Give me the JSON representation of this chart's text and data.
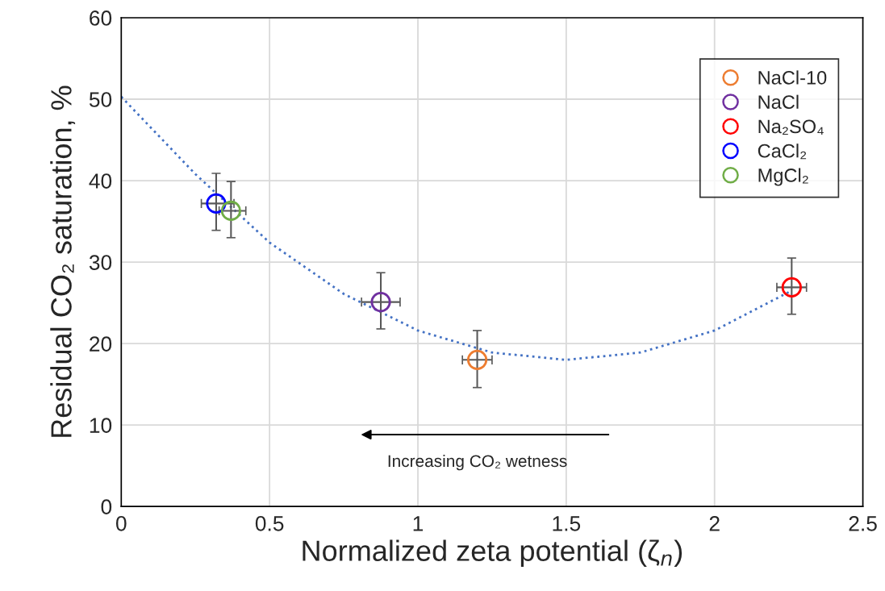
{
  "chart_data": {
    "type": "scatter",
    "xlabel": "Normalized zeta potential (ζ$_{n}$)",
    "ylabel": "Residual CO₂ saturation, %",
    "xlim": [
      0,
      2.5
    ],
    "xticks": [
      0,
      0.5,
      1,
      1.5,
      2,
      2.5
    ],
    "ylim": [
      0,
      60
    ],
    "yticks": [
      0,
      10,
      20,
      30,
      40,
      50,
      60
    ],
    "grid": true,
    "legend": "top right",
    "marker": "circle",
    "annotations": [
      "Increasing CO₂ wetness"
    ],
    "series": [
      {
        "type": "line",
        "color": "#4472c4",
        "line_style": "dotted",
        "marker": "none",
        "x": [
          0,
          0.25,
          0.5,
          0.75,
          1,
          1.25,
          1.5,
          1.75,
          2,
          2.26
        ],
        "values": [
          50.3,
          40.8,
          32.4,
          26.1,
          21.6,
          18.9,
          18.0,
          18.9,
          21.6,
          26.5
        ]
      },
      {
        "name": "NaCl-10",
        "color": "#ed7d31",
        "x": [
          1.2
        ],
        "values": [
          18.0
        ],
        "errors": [
          [
            14.6,
            21.6
          ]
        ],
        "xerrors": [
          [
            1.15,
            1.25
          ]
        ]
      },
      {
        "name": "NaCl",
        "color": "#7030a0",
        "x": [
          0.875
        ],
        "values": [
          25.1
        ],
        "errors": [
          [
            21.8,
            28.7
          ]
        ],
        "xerrors": [
          [
            0.81,
            0.94
          ]
        ]
      },
      {
        "name": "Na₂SO₄",
        "color": "#ff0000",
        "x": [
          2.26
        ],
        "values": [
          26.9
        ],
        "errors": [
          [
            23.6,
            30.5
          ]
        ],
        "xerrors": [
          [
            2.21,
            2.31
          ]
        ]
      },
      {
        "name": "CaCl₂",
        "color": "#0000ff",
        "x": [
          0.32
        ],
        "values": [
          37.2
        ],
        "errors": [
          [
            33.9,
            40.9
          ]
        ],
        "xerrors": [
          [
            0.27,
            0.38
          ]
        ]
      },
      {
        "name": "MgCl₂",
        "color": "#70ad47",
        "x": [
          0.37
        ],
        "values": [
          36.3
        ],
        "errors": [
          [
            33.0,
            39.9
          ]
        ],
        "xerrors": [
          [
            0.33,
            0.42
          ]
        ]
      }
    ]
  }
}
